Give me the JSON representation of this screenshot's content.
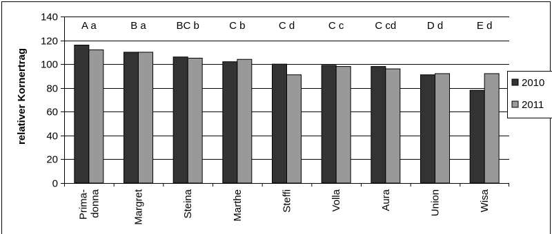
{
  "chart_data": {
    "type": "bar",
    "ylabel": "relativer Kornertrag",
    "xlabel": "",
    "ylim": [
      0,
      140
    ],
    "yticks": [
      0,
      20,
      40,
      60,
      80,
      100,
      120,
      140
    ],
    "grid": true,
    "legend_position": "right",
    "categories": [
      [
        "Prima-",
        "donna"
      ],
      [
        "Margret"
      ],
      [
        "Steina"
      ],
      [
        "Marthe"
      ],
      [
        "Steffi"
      ],
      [
        "Volla"
      ],
      [
        "Aura"
      ],
      [
        "Union"
      ],
      [
        "Wisa"
      ]
    ],
    "annotations": [
      "A a",
      "B a",
      "BC b",
      "C b",
      "C d",
      "C c",
      "C cd",
      "D d",
      "E d"
    ],
    "series": [
      {
        "name": "2010",
        "color": "#333333",
        "values": [
          116,
          110,
          106,
          102,
          100,
          99,
          98,
          91,
          78
        ]
      },
      {
        "name": "2011",
        "color": "#999999",
        "values": [
          112,
          110,
          105,
          104,
          91,
          98,
          96,
          92,
          92
        ]
      }
    ]
  }
}
